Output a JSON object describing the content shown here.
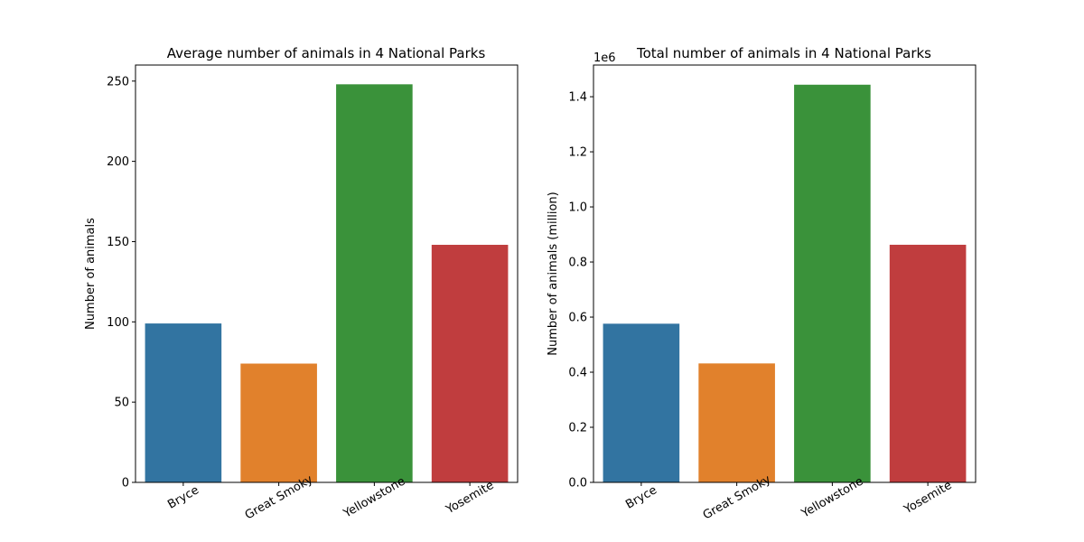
{
  "chart_data": [
    {
      "type": "bar",
      "title": "Average number of animals in 4 National Parks",
      "xlabel": "",
      "ylabel": "Number of animals",
      "categories": [
        "Bryce",
        "Great Smoky",
        "Yellowstone",
        "Yosemite"
      ],
      "values": [
        99,
        74,
        248,
        148
      ],
      "colors": [
        "#3274a1",
        "#e1812c",
        "#3a923a",
        "#c03d3e"
      ],
      "ylim": [
        0,
        260
      ],
      "yticks": [
        0,
        50,
        100,
        150,
        200,
        250
      ],
      "ytick_labels": [
        "0",
        "50",
        "100",
        "150",
        "200",
        "250"
      ],
      "offset_text": "",
      "grid": false,
      "xtick_rotation_deg": 30
    },
    {
      "type": "bar",
      "title": "Total number of animals in 4 National Parks",
      "xlabel": "",
      "ylabel": "Number of animals (million)",
      "categories": [
        "Bryce",
        "Great Smoky",
        "Yellowstone",
        "Yosemite"
      ],
      "values": [
        576000,
        431800,
        1443600,
        862600
      ],
      "colors": [
        "#3274a1",
        "#e1812c",
        "#3a923a",
        "#c03d3e"
      ],
      "ylim": [
        0,
        1515000
      ],
      "yticks": [
        0,
        200000,
        400000,
        600000,
        800000,
        1000000,
        1200000,
        1400000
      ],
      "ytick_labels": [
        "0.0",
        "0.2",
        "0.4",
        "0.6",
        "0.8",
        "1.0",
        "1.2",
        "1.4"
      ],
      "offset_text": "1e6",
      "grid": false,
      "xtick_rotation_deg": 30
    }
  ]
}
